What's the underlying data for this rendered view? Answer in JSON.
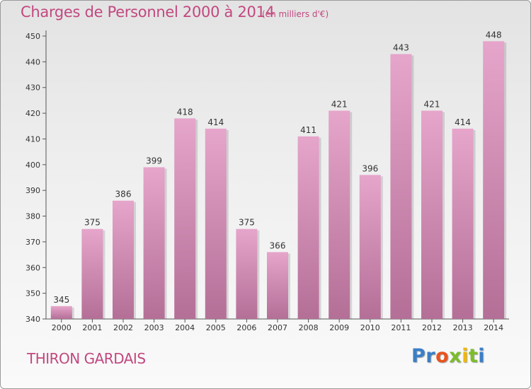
{
  "header": {
    "title": "Charges de Personnel 2000 à 2014",
    "unit": "(en milliers d'€)"
  },
  "footer": {
    "commune": "THIRON GARDAIS",
    "logo": [
      "P",
      "r",
      "o",
      "x",
      "i",
      "t",
      "i"
    ]
  },
  "colors": {
    "title": "#c2487f",
    "bar_top": "#e6a5cb",
    "bar_bottom": "#b46f97",
    "logo": [
      "#3a7fc8",
      "#3a7fc8",
      "#e8541e",
      "#7cbd2b",
      "#f2b705",
      "#7cbd2b",
      "#3a7fc8"
    ]
  },
  "chart_data": {
    "type": "bar",
    "categories": [
      "2000",
      "2001",
      "2002",
      "2003",
      "2004",
      "2005",
      "2006",
      "2007",
      "2008",
      "2009",
      "2010",
      "2011",
      "2012",
      "2013",
      "2014"
    ],
    "values": [
      345,
      375,
      386,
      399,
      418,
      414,
      375,
      366,
      411,
      421,
      396,
      443,
      421,
      414,
      448
    ],
    "ylim": [
      340,
      450
    ],
    "yticks": [
      340,
      350,
      360,
      370,
      380,
      390,
      400,
      410,
      420,
      430,
      440,
      450
    ],
    "grid": false,
    "legend": "none"
  }
}
